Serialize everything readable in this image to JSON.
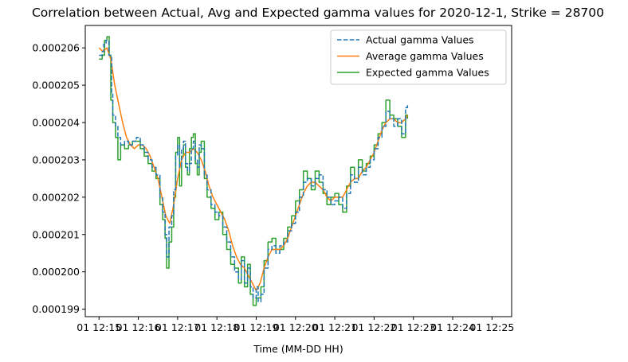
{
  "chart_data": {
    "type": "line",
    "title": "Correlation between Actual, Avg and Expected gamma values for 2020-12-1, Strike = 28700",
    "xlabel": "Time (MM-DD HH)",
    "ylabel": "",
    "x_ticks": [
      "01 12:15",
      "01 12:16",
      "01 12:17",
      "01 12:18",
      "01 12:19",
      "01 12:20",
      "01 12:21",
      "01 12:22",
      "01 12:23",
      "01 12:24",
      "01 12:25"
    ],
    "xlim": [
      -0.35,
      10.5
    ],
    "ylim": [
      0.0001988,
      0.0002066
    ],
    "y_ticks": [
      "0.000199",
      "0.000200",
      "0.000201",
      "0.000202",
      "0.000203",
      "0.000204",
      "0.000205",
      "0.000206"
    ],
    "y_tick_values": [
      0.000199,
      0.0002,
      0.000201,
      0.000202,
      0.000203,
      0.000204,
      0.000205,
      0.000206
    ],
    "grid": false,
    "legend_position": "top-right",
    "series": [
      {
        "name": "Actual gamma Values",
        "color": "#1f77b4",
        "dash": "dashed",
        "step": true,
        "points": [
          [
            0.0,
            0.0002058
          ],
          [
            0.08,
            0.0002059
          ],
          [
            0.12,
            0.0002061
          ],
          [
            0.18,
            0.0002062
          ],
          [
            0.25,
            0.0002058
          ],
          [
            0.32,
            0.0002048
          ],
          [
            0.35,
            0.0002042
          ],
          [
            0.42,
            0.0002039
          ],
          [
            0.48,
            0.0002036
          ],
          [
            0.55,
            0.0002034
          ],
          [
            0.65,
            0.0002035
          ],
          [
            0.75,
            0.0002034
          ],
          [
            0.85,
            0.0002035
          ],
          [
            0.95,
            0.0002036
          ],
          [
            1.05,
            0.0002034
          ],
          [
            1.15,
            0.0002032
          ],
          [
            1.25,
            0.000203
          ],
          [
            1.35,
            0.0002028
          ],
          [
            1.45,
            0.0002026
          ],
          [
            1.55,
            0.000202
          ],
          [
            1.62,
            0.0002016
          ],
          [
            1.68,
            0.000201
          ],
          [
            1.72,
            0.0002004
          ],
          [
            1.78,
            0.0002012
          ],
          [
            1.85,
            0.0002015
          ],
          [
            1.9,
            0.0002022
          ],
          [
            1.95,
            0.0002031
          ],
          [
            2.0,
            0.0002034
          ],
          [
            2.05,
            0.0002028
          ],
          [
            2.1,
            0.0002033
          ],
          [
            2.15,
            0.0002035
          ],
          [
            2.2,
            0.0002029
          ],
          [
            2.25,
            0.0002027
          ],
          [
            2.3,
            0.0002029
          ],
          [
            2.35,
            0.0002033
          ],
          [
            2.4,
            0.0002035
          ],
          [
            2.45,
            0.000203
          ],
          [
            2.5,
            0.0002028
          ],
          [
            2.55,
            0.0002034
          ],
          [
            2.6,
            0.0002033
          ],
          [
            2.68,
            0.0002026
          ],
          [
            2.75,
            0.0002022
          ],
          [
            2.85,
            0.0002018
          ],
          [
            2.95,
            0.0002016
          ],
          [
            3.05,
            0.0002015
          ],
          [
            3.15,
            0.0002012
          ],
          [
            3.25,
            0.0002008
          ],
          [
            3.35,
            0.0002004
          ],
          [
            3.45,
            0.0002
          ],
          [
            3.55,
            0.0001998
          ],
          [
            3.62,
            0.0002003
          ],
          [
            3.7,
            0.0001997
          ],
          [
            3.78,
            0.0002001
          ],
          [
            3.85,
            0.0001996
          ],
          [
            3.92,
            0.0001993
          ],
          [
            4.0,
            0.0001996
          ],
          [
            4.05,
            0.0001992
          ],
          [
            4.12,
            0.0001994
          ],
          [
            4.2,
            0.0002001
          ],
          [
            4.3,
            0.0002006
          ],
          [
            4.4,
            0.0002007
          ],
          [
            4.5,
            0.0002005
          ],
          [
            4.6,
            0.0002007
          ],
          [
            4.7,
            0.0002008
          ],
          [
            4.8,
            0.0002011
          ],
          [
            4.9,
            0.0002013
          ],
          [
            5.0,
            0.0002016
          ],
          [
            5.1,
            0.000202
          ],
          [
            5.2,
            0.0002024
          ],
          [
            5.3,
            0.0002025
          ],
          [
            5.4,
            0.0002023
          ],
          [
            5.5,
            0.0002025
          ],
          [
            5.6,
            0.0002026
          ],
          [
            5.7,
            0.0002022
          ],
          [
            5.8,
            0.000202
          ],
          [
            5.9,
            0.0002018
          ],
          [
            6.0,
            0.0002019
          ],
          [
            6.1,
            0.000202
          ],
          [
            6.2,
            0.0002017
          ],
          [
            6.3,
            0.0002021
          ],
          [
            6.4,
            0.0002026
          ],
          [
            6.5,
            0.0002024
          ],
          [
            6.6,
            0.0002028
          ],
          [
            6.7,
            0.0002026
          ],
          [
            6.8,
            0.0002028
          ],
          [
            6.9,
            0.000203
          ],
          [
            7.0,
            0.0002033
          ],
          [
            7.1,
            0.0002036
          ],
          [
            7.2,
            0.0002039
          ],
          [
            7.3,
            0.0002043
          ],
          [
            7.4,
            0.0002041
          ],
          [
            7.5,
            0.0002039
          ],
          [
            7.6,
            0.0002041
          ],
          [
            7.7,
            0.0002037
          ],
          [
            7.8,
            0.0002044
          ],
          [
            7.85,
            0.0002045
          ]
        ]
      },
      {
        "name": "Average gamma Values",
        "color": "#ff7f0e",
        "dash": "solid",
        "step": false,
        "points": [
          [
            0.0,
            0.000206
          ],
          [
            0.1,
            0.0002059
          ],
          [
            0.2,
            0.000206
          ],
          [
            0.3,
            0.0002057
          ],
          [
            0.4,
            0.000205
          ],
          [
            0.5,
            0.0002045
          ],
          [
            0.6,
            0.000204
          ],
          [
            0.7,
            0.0002036
          ],
          [
            0.8,
            0.0002034
          ],
          [
            0.9,
            0.0002033
          ],
          [
            1.0,
            0.0002034
          ],
          [
            1.1,
            0.0002034
          ],
          [
            1.2,
            0.0002033
          ],
          [
            1.3,
            0.0002031
          ],
          [
            1.4,
            0.0002028
          ],
          [
            1.5,
            0.0002025
          ],
          [
            1.6,
            0.000202
          ],
          [
            1.7,
            0.0002015
          ],
          [
            1.8,
            0.0002013
          ],
          [
            1.9,
            0.0002018
          ],
          [
            2.0,
            0.0002025
          ],
          [
            2.1,
            0.000203
          ],
          [
            2.2,
            0.0002032
          ],
          [
            2.3,
            0.0002032
          ],
          [
            2.4,
            0.0002033
          ],
          [
            2.5,
            0.0002032
          ],
          [
            2.6,
            0.000203
          ],
          [
            2.7,
            0.0002027
          ],
          [
            2.8,
            0.0002023
          ],
          [
            2.9,
            0.000202
          ],
          [
            3.0,
            0.0002018
          ],
          [
            3.1,
            0.0002016
          ],
          [
            3.2,
            0.0002014
          ],
          [
            3.3,
            0.0002011
          ],
          [
            3.4,
            0.0002007
          ],
          [
            3.5,
            0.0002004
          ],
          [
            3.6,
            0.0002002
          ],
          [
            3.7,
            0.0002001
          ],
          [
            3.8,
            0.0001999
          ],
          [
            3.9,
            0.0001997
          ],
          [
            4.0,
            0.0001995
          ],
          [
            4.1,
            0.0001997
          ],
          [
            4.2,
            0.0002001
          ],
          [
            4.3,
            0.0002004
          ],
          [
            4.4,
            0.0002006
          ],
          [
            4.5,
            0.0002006
          ],
          [
            4.6,
            0.0002006
          ],
          [
            4.7,
            0.0002007
          ],
          [
            4.8,
            0.0002009
          ],
          [
            4.9,
            0.0002012
          ],
          [
            5.0,
            0.0002015
          ],
          [
            5.1,
            0.0002018
          ],
          [
            5.2,
            0.0002021
          ],
          [
            5.3,
            0.0002023
          ],
          [
            5.4,
            0.0002024
          ],
          [
            5.5,
            0.0002024
          ],
          [
            5.6,
            0.0002023
          ],
          [
            5.7,
            0.0002022
          ],
          [
            5.8,
            0.000202
          ],
          [
            5.9,
            0.0002019
          ],
          [
            6.0,
            0.000202
          ],
          [
            6.1,
            0.000202
          ],
          [
            6.2,
            0.000202
          ],
          [
            6.3,
            0.0002022
          ],
          [
            6.4,
            0.0002024
          ],
          [
            6.5,
            0.0002025
          ],
          [
            6.6,
            0.0002025
          ],
          [
            6.7,
            0.0002027
          ],
          [
            6.8,
            0.0002028
          ],
          [
            6.9,
            0.000203
          ],
          [
            7.0,
            0.0002032
          ],
          [
            7.1,
            0.0002035
          ],
          [
            7.2,
            0.0002038
          ],
          [
            7.3,
            0.000204
          ],
          [
            7.4,
            0.0002041
          ],
          [
            7.5,
            0.0002041
          ],
          [
            7.6,
            0.000204
          ],
          [
            7.7,
            0.000204
          ],
          [
            7.8,
            0.0002041
          ],
          [
            7.85,
            0.0002042
          ]
        ]
      },
      {
        "name": "Expected gamma Values",
        "color": "#2ca02c",
        "dash": "solid",
        "step": true,
        "points": [
          [
            0.0,
            0.0002057
          ],
          [
            0.08,
            0.0002058
          ],
          [
            0.14,
            0.0002062
          ],
          [
            0.2,
            0.0002063
          ],
          [
            0.26,
            0.0002058
          ],
          [
            0.3,
            0.0002046
          ],
          [
            0.35,
            0.000204
          ],
          [
            0.42,
            0.0002036
          ],
          [
            0.48,
            0.000203
          ],
          [
            0.55,
            0.0002034
          ],
          [
            0.65,
            0.0002033
          ],
          [
            0.75,
            0.0002034
          ],
          [
            0.85,
            0.0002035
          ],
          [
            0.95,
            0.0002035
          ],
          [
            1.05,
            0.0002033
          ],
          [
            1.15,
            0.0002031
          ],
          [
            1.25,
            0.0002029
          ],
          [
            1.35,
            0.0002027
          ],
          [
            1.45,
            0.0002025
          ],
          [
            1.55,
            0.0002018
          ],
          [
            1.62,
            0.0002014
          ],
          [
            1.68,
            0.0002009
          ],
          [
            1.72,
            0.0002001
          ],
          [
            1.78,
            0.0002008
          ],
          [
            1.85,
            0.0002012
          ],
          [
            1.9,
            0.000202
          ],
          [
            1.95,
            0.0002032
          ],
          [
            2.0,
            0.0002036
          ],
          [
            2.05,
            0.0002023
          ],
          [
            2.1,
            0.0002031
          ],
          [
            2.15,
            0.0002034
          ],
          [
            2.2,
            0.0002028
          ],
          [
            2.25,
            0.0002026
          ],
          [
            2.3,
            0.0002033
          ],
          [
            2.35,
            0.0002036
          ],
          [
            2.4,
            0.0002037
          ],
          [
            2.45,
            0.0002029
          ],
          [
            2.5,
            0.0002026
          ],
          [
            2.55,
            0.0002032
          ],
          [
            2.6,
            0.0002035
          ],
          [
            2.68,
            0.0002025
          ],
          [
            2.75,
            0.000202
          ],
          [
            2.85,
            0.0002017
          ],
          [
            2.95,
            0.0002014
          ],
          [
            3.05,
            0.0002016
          ],
          [
            3.15,
            0.000201
          ],
          [
            3.25,
            0.0002006
          ],
          [
            3.35,
            0.0002002
          ],
          [
            3.45,
            0.0002001
          ],
          [
            3.55,
            0.0001997
          ],
          [
            3.62,
            0.0002004
          ],
          [
            3.7,
            0.0001996
          ],
          [
            3.78,
            0.0002002
          ],
          [
            3.85,
            0.0001994
          ],
          [
            3.92,
            0.0001991
          ],
          [
            4.0,
            0.0001993
          ],
          [
            4.05,
            0.0001993
          ],
          [
            4.12,
            0.0001996
          ],
          [
            4.2,
            0.0002003
          ],
          [
            4.3,
            0.0002008
          ],
          [
            4.4,
            0.0002009
          ],
          [
            4.5,
            0.0002006
          ],
          [
            4.6,
            0.0002006
          ],
          [
            4.7,
            0.0002009
          ],
          [
            4.8,
            0.0002012
          ],
          [
            4.9,
            0.0002015
          ],
          [
            5.0,
            0.0002019
          ],
          [
            5.1,
            0.0002022
          ],
          [
            5.2,
            0.0002027
          ],
          [
            5.3,
            0.0002025
          ],
          [
            5.4,
            0.0002022
          ],
          [
            5.5,
            0.0002027
          ],
          [
            5.6,
            0.0002024
          ],
          [
            5.7,
            0.0002021
          ],
          [
            5.8,
            0.0002018
          ],
          [
            5.9,
            0.000202
          ],
          [
            6.0,
            0.0002021
          ],
          [
            6.1,
            0.0002018
          ],
          [
            6.2,
            0.0002016
          ],
          [
            6.3,
            0.0002023
          ],
          [
            6.4,
            0.0002028
          ],
          [
            6.5,
            0.0002025
          ],
          [
            6.6,
            0.000203
          ],
          [
            6.7,
            0.0002027
          ],
          [
            6.8,
            0.0002029
          ],
          [
            6.9,
            0.0002031
          ],
          [
            7.0,
            0.0002034
          ],
          [
            7.1,
            0.0002037
          ],
          [
            7.2,
            0.000204
          ],
          [
            7.3,
            0.0002046
          ],
          [
            7.4,
            0.0002042
          ],
          [
            7.5,
            0.0002041
          ],
          [
            7.6,
            0.0002039
          ],
          [
            7.7,
            0.0002036
          ],
          [
            7.8,
            0.0002042
          ],
          [
            7.85,
            0.0002041
          ]
        ]
      }
    ]
  }
}
